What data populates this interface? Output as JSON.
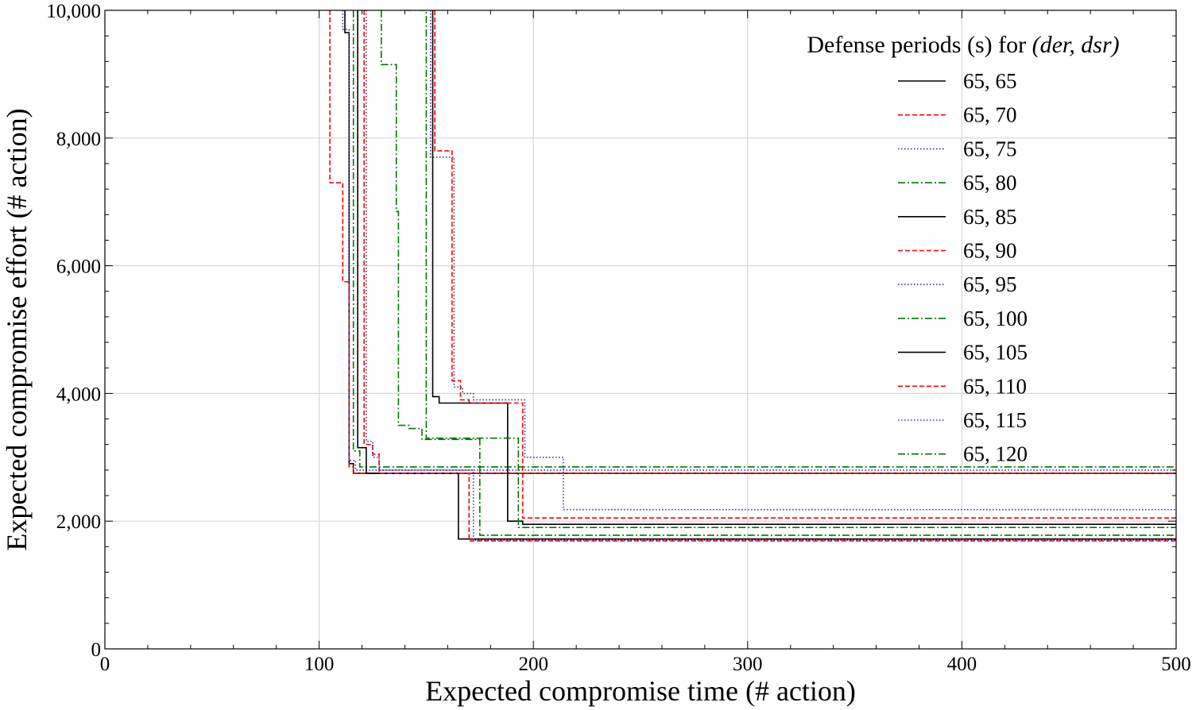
{
  "chart_data": {
    "type": "line",
    "step": true,
    "title": "",
    "xlabel": "Expected compromise time (# action)",
    "ylabel": "Expected compromise effort (# action)",
    "xlim": [
      0,
      500
    ],
    "ylim": [
      0,
      10000
    ],
    "grid": true,
    "x_ticks": [
      0,
      100,
      200,
      300,
      400,
      500
    ],
    "x_tick_labels": [
      "0",
      "100",
      "200",
      "300",
      "400",
      "500"
    ],
    "y_ticks": [
      0,
      2000,
      4000,
      6000,
      8000,
      10000
    ],
    "y_tick_labels": [
      "0",
      "2,000",
      "4,000",
      "6,000",
      "8,000",
      "10,000"
    ],
    "legend": {
      "title_prefix": "Defense periods (s) for ",
      "title_math": "(der, dsr)",
      "position": "top-right"
    },
    "series": [
      {
        "name": "65, 65",
        "color": "#000000",
        "dash": "solid",
        "x": [
          112,
          112,
          114,
          114,
          116,
          116,
          500
        ],
        "y": [
          10000,
          9650,
          9650,
          2900,
          2900,
          2750,
          2750
        ]
      },
      {
        "name": "65, 70",
        "color": "#ff0000",
        "dash": "dashed",
        "x": [
          105,
          105,
          111,
          111,
          114,
          114,
          116,
          116,
          500
        ],
        "y": [
          10000,
          7300,
          7300,
          5750,
          5750,
          2850,
          2850,
          2750,
          2750
        ]
      },
      {
        "name": "65, 75",
        "color": "#3333aa",
        "dash": "dotted",
        "x": [
          111,
          111,
          114,
          114,
          117,
          117,
          500
        ],
        "y": [
          10000,
          9700,
          9700,
          2950,
          2950,
          2800,
          2800
        ]
      },
      {
        "name": "65, 80",
        "color": "#007700",
        "dash": "dashdot",
        "x": [
          116,
          116,
          119,
          119,
          500
        ],
        "y": [
          10000,
          3100,
          3100,
          2850,
          2850
        ]
      },
      {
        "name": "65, 85",
        "color": "#000000",
        "dash": "solid",
        "x": [
          118,
          118,
          122,
          122,
          165,
          165,
          200,
          200,
          500
        ],
        "y": [
          10000,
          3150,
          3150,
          2750,
          2750,
          1720,
          1720,
          1720,
          1720
        ]
      },
      {
        "name": "65, 90",
        "color": "#ff0000",
        "dash": "dashed",
        "x": [
          121,
          121,
          125,
          125,
          128,
          128,
          170,
          170,
          500
        ],
        "y": [
          10000,
          3200,
          3200,
          3050,
          3050,
          2750,
          2750,
          1690,
          1690
        ]
      },
      {
        "name": "65, 95",
        "color": "#3333aa",
        "dash": "dotted",
        "x": [
          122,
          122,
          125,
          125,
          128,
          128,
          172,
          172,
          500
        ],
        "y": [
          10000,
          3250,
          3250,
          3000,
          3000,
          2800,
          2800,
          1700,
          1700
        ]
      },
      {
        "name": "65, 100",
        "color": "#007700",
        "dash": "dashdot",
        "x": [
          129,
          129,
          136,
          136,
          137,
          137,
          142,
          142,
          148,
          148,
          175,
          175,
          500
        ],
        "y": [
          10000,
          9150,
          9150,
          6850,
          6850,
          3500,
          3500,
          3450,
          3450,
          3280,
          3280,
          1780,
          1780
        ]
      },
      {
        "name": "65, 105",
        "color": "#000000",
        "dash": "solid",
        "x": [
          153,
          153,
          156,
          156,
          188,
          188,
          195,
          195,
          500
        ],
        "y": [
          10000,
          3950,
          3950,
          3850,
          3850,
          2000,
          2000,
          1950,
          1950
        ]
      },
      {
        "name": "65, 110",
        "color": "#ff0000",
        "dash": "dashed",
        "x": [
          154,
          154,
          162,
          162,
          166,
          166,
          170,
          170,
          195,
          195,
          500
        ],
        "y": [
          10000,
          7800,
          7800,
          4200,
          4200,
          3900,
          3900,
          3850,
          3850,
          2050,
          2050
        ]
      },
      {
        "name": "65, 115",
        "color": "#3333aa",
        "dash": "dotted",
        "x": [
          152,
          152,
          163,
          163,
          167,
          167,
          172,
          172,
          196,
          196,
          214,
          214,
          500
        ],
        "y": [
          10000,
          7700,
          7700,
          4100,
          4100,
          4000,
          4000,
          3900,
          3900,
          3000,
          3000,
          2180,
          2180
        ]
      },
      {
        "name": "65, 120",
        "color": "#007700",
        "dash": "dashdot",
        "x": [
          140,
          140,
          150,
          150,
          193,
          193,
          500
        ],
        "y": [
          10000,
          10000,
          10000,
          3300,
          3300,
          1900,
          1900
        ]
      }
    ]
  }
}
